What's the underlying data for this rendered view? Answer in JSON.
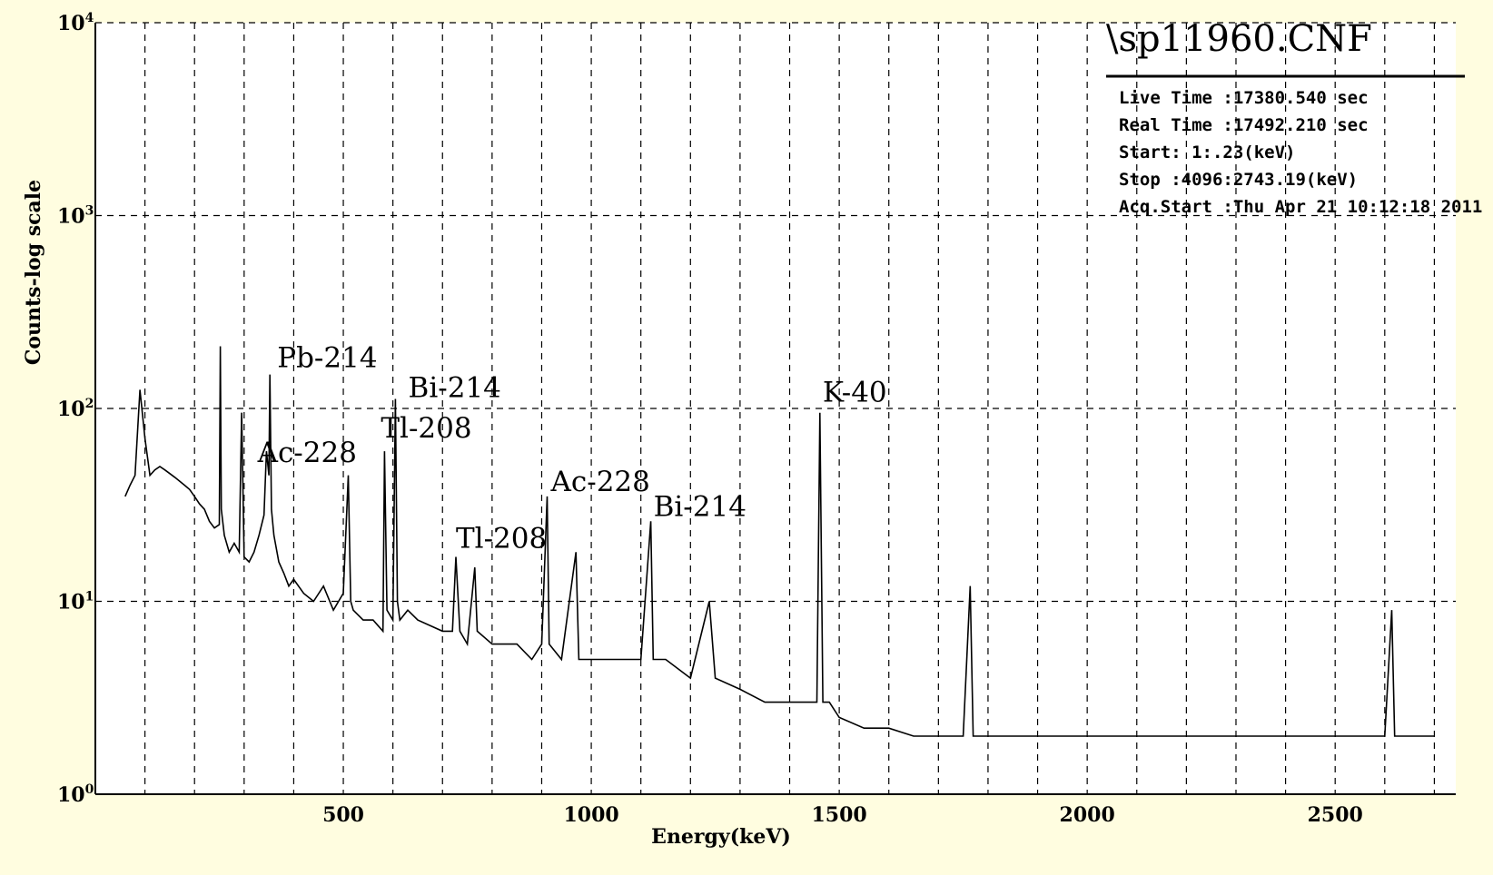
{
  "chart_data": {
    "type": "line",
    "title": "\\sp11960.CNF",
    "xlabel": "Energy(keV)",
    "ylabel": "Counts-log scale",
    "xlim": [
      0,
      2743.19
    ],
    "ylim": [
      1,
      10000
    ],
    "yscale": "log",
    "grid": true,
    "x_ticks": [
      500,
      1000,
      1500,
      2000,
      2500
    ],
    "y_ticks": [
      {
        "value": 1,
        "base": "10",
        "exp": "0"
      },
      {
        "value": 10,
        "base": "10",
        "exp": "1"
      },
      {
        "value": 100,
        "base": "10",
        "exp": "2"
      },
      {
        "value": 1000,
        "base": "10",
        "exp": "3"
      },
      {
        "value": 10000,
        "base": "10",
        "exp": "4"
      }
    ],
    "info_box": {
      "live_time": "Live Time :17380.540 sec",
      "real_time": "Real Time :17492.210 sec",
      "start": "Start:    1:.23(keV)",
      "stop": "Stop :4096:2743.19(keV)",
      "acq_start": "Acq.Start :Thu Apr 21 10:12:18 2011"
    },
    "peaks": [
      {
        "label": "Pb-214",
        "energy": 352,
        "counts": 150
      },
      {
        "label": "Ac-228",
        "energy": 338,
        "counts": 60
      },
      {
        "label": "Bi-214",
        "energy": 609,
        "counts": 112
      },
      {
        "label": "Tl-208",
        "energy": 583,
        "counts": 62
      },
      {
        "label": "Tl-208",
        "energy": 727,
        "counts": 17
      },
      {
        "label": "Ac-228",
        "energy": 911,
        "counts": 35
      },
      {
        "label": "Bi-214",
        "energy": 1120,
        "counts": 26
      },
      {
        "label": "K-40",
        "energy": 1461,
        "counts": 95
      }
    ],
    "spectrum": {
      "x": [
        60,
        70,
        80,
        90,
        100,
        110,
        120,
        130,
        140,
        150,
        160,
        170,
        180,
        190,
        200,
        210,
        220,
        230,
        240,
        250,
        252,
        254,
        260,
        270,
        280,
        290,
        295,
        300,
        310,
        320,
        330,
        340,
        345,
        350,
        352,
        355,
        360,
        370,
        380,
        390,
        400,
        420,
        440,
        460,
        480,
        500,
        510,
        515,
        520,
        540,
        560,
        580,
        583,
        588,
        600,
        605,
        609,
        614,
        630,
        650,
        700,
        720,
        727,
        735,
        750,
        765,
        770,
        800,
        820,
        850,
        880,
        900,
        911,
        915,
        940,
        969,
        975,
        1000,
        1050,
        1100,
        1120,
        1125,
        1150,
        1200,
        1238,
        1250,
        1300,
        1350,
        1400,
        1450,
        1455,
        1461,
        1467,
        1480,
        1500,
        1550,
        1600,
        1650,
        1700,
        1750,
        1764,
        1770,
        1800,
        1850,
        1900,
        1950,
        2000,
        2050,
        2100,
        2150,
        2200,
        2250,
        2300,
        2350,
        2400,
        2450,
        2500,
        2550,
        2600,
        2614,
        2620,
        2650,
        2700
      ],
      "y": [
        35,
        40,
        45,
        125,
        70,
        45,
        48,
        50,
        48,
        46,
        44,
        42,
        40,
        38,
        35,
        32,
        30,
        26,
        24,
        25,
        210,
        30,
        22,
        18,
        20,
        18,
        95,
        17,
        16,
        18,
        22,
        28,
        60,
        45,
        150,
        30,
        22,
        16,
        14,
        12,
        13,
        11,
        10,
        12,
        9,
        11,
        45,
        10,
        9,
        8,
        8,
        7,
        60,
        9,
        8,
        112,
        10,
        8,
        9,
        8,
        7,
        7,
        17,
        7,
        6,
        15,
        7,
        6,
        6,
        6,
        5,
        6,
        35,
        6,
        5,
        18,
        5,
        5,
        5,
        5,
        26,
        5,
        5,
        4,
        10,
        4,
        3.5,
        3,
        3,
        3,
        3,
        95,
        3,
        3,
        2.5,
        2.2,
        2.2,
        2,
        2,
        2,
        12,
        2,
        2,
        2,
        2,
        2,
        2,
        2,
        2,
        2,
        2,
        2,
        2,
        2,
        2,
        2,
        2,
        2,
        2,
        9,
        2,
        2,
        2
      ]
    }
  }
}
